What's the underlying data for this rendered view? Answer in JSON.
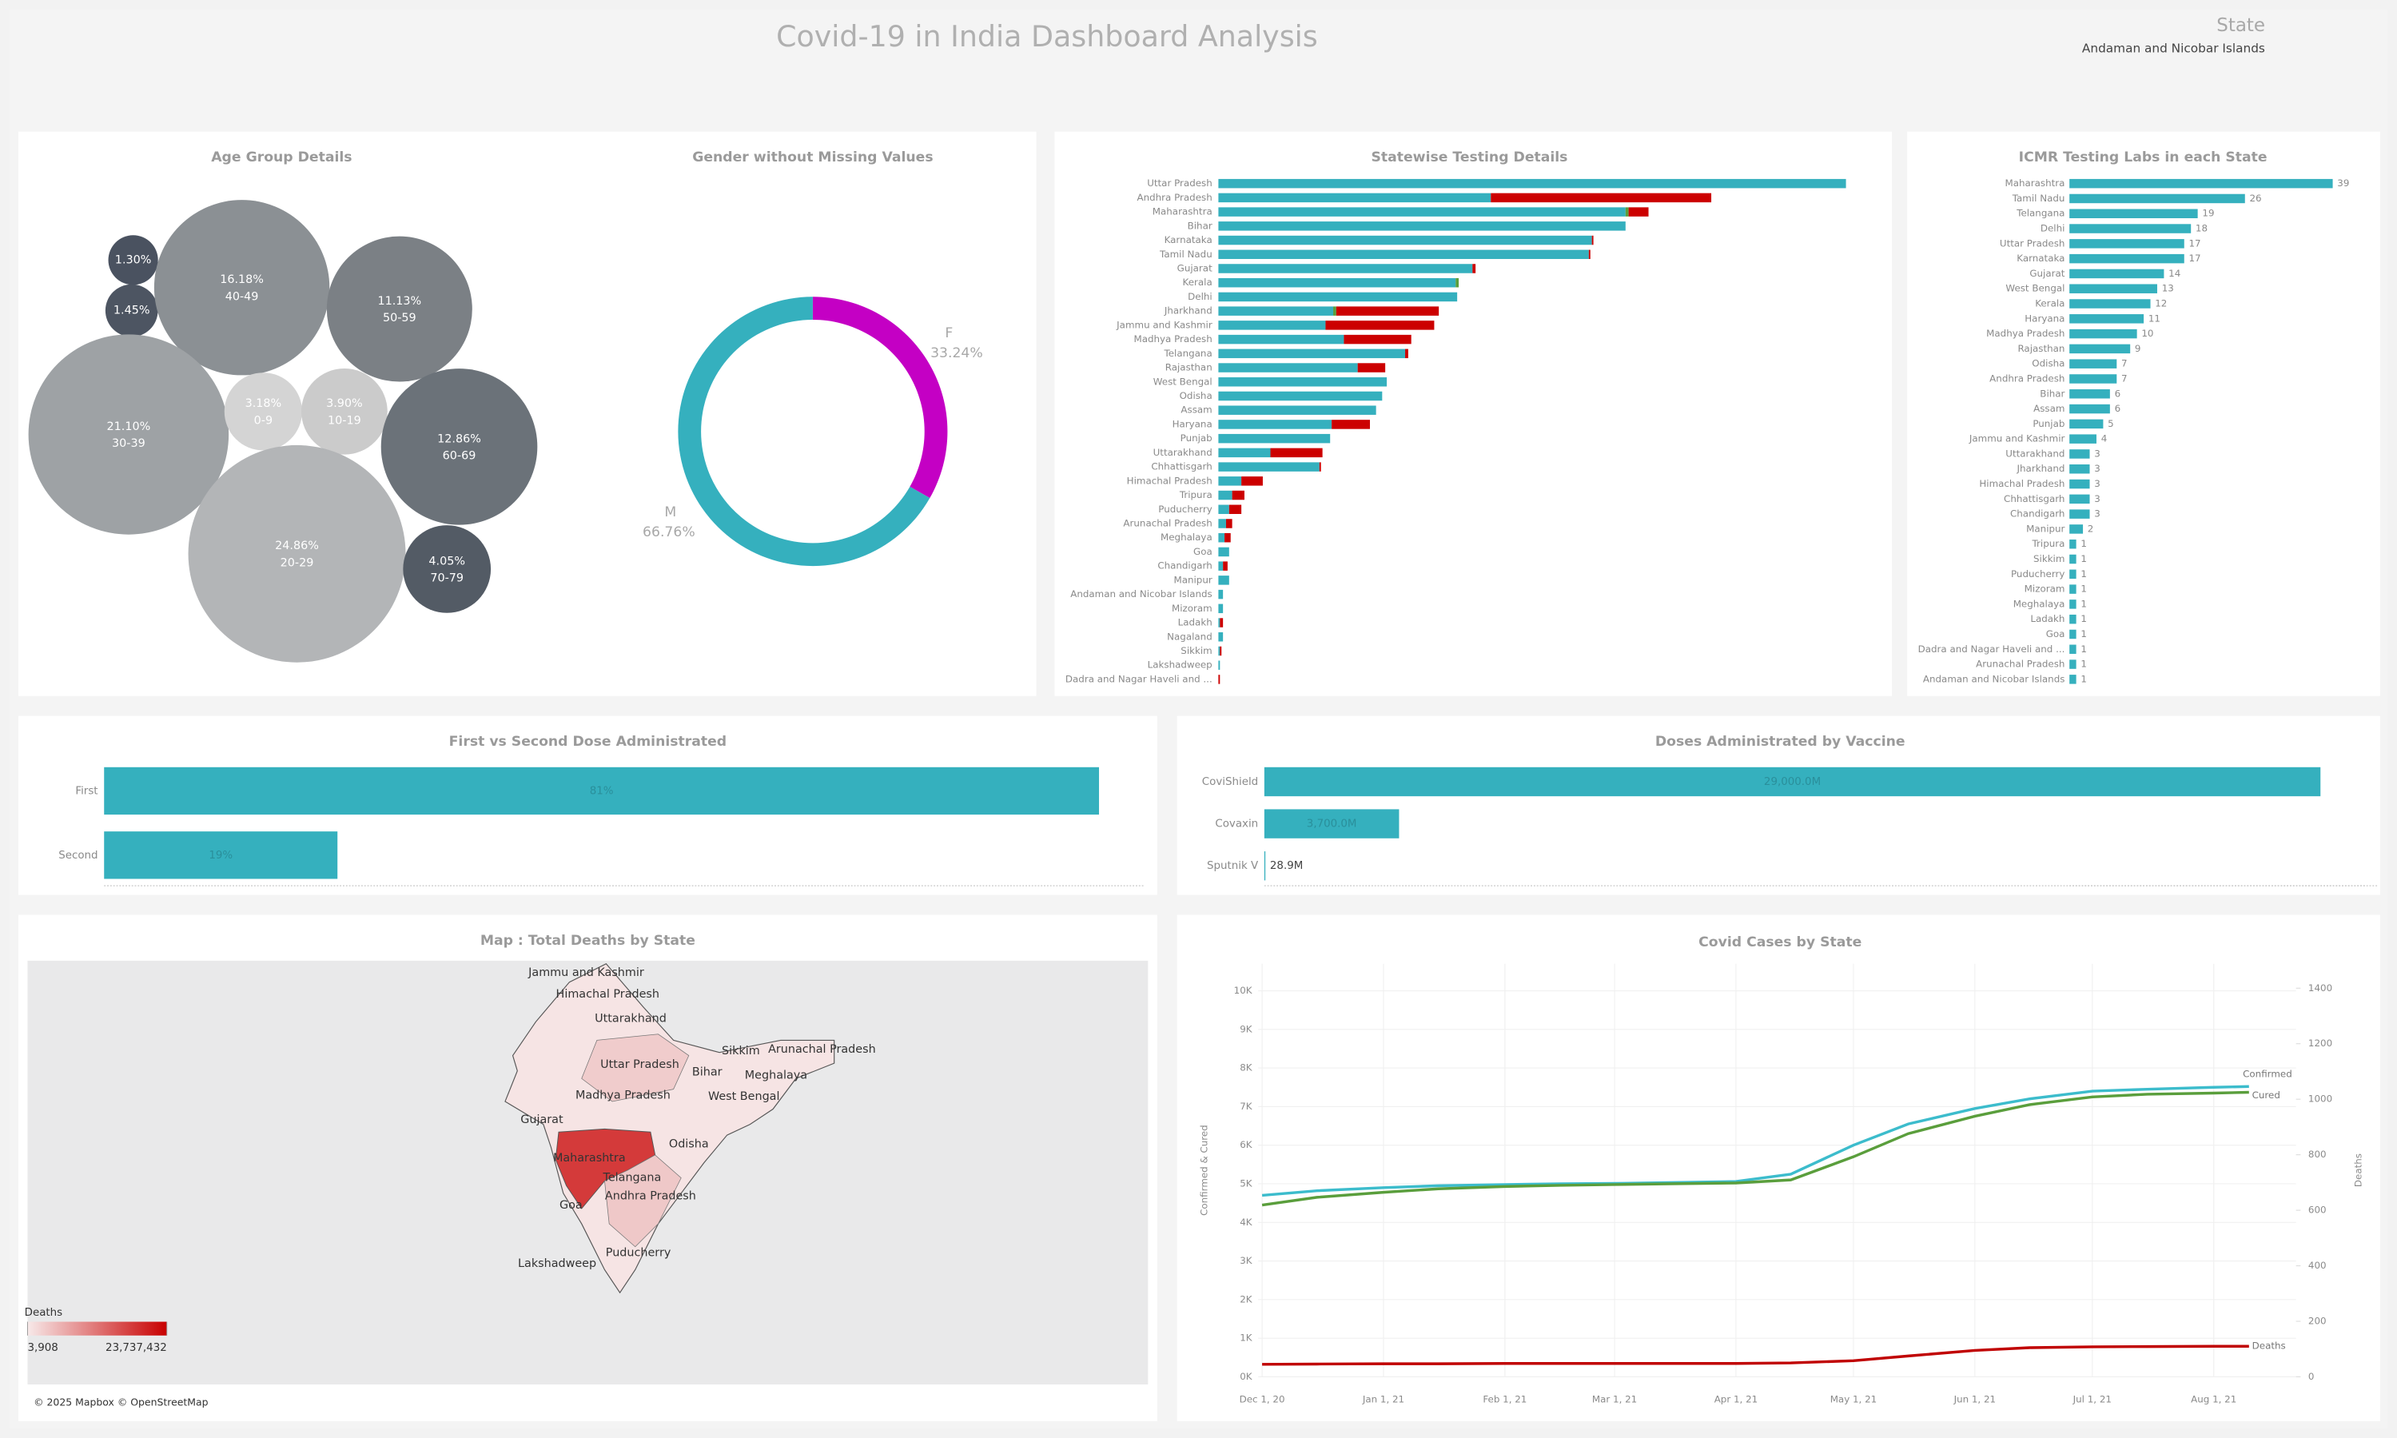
{
  "header": {
    "title": "Covid-19 in India Dashboard Analysis",
    "filter_label": "State",
    "filter_value": "Andaman and Nicobar Islands"
  },
  "chart_data": [
    {
      "type": "bubble",
      "title": "Age Group Details",
      "categories": [
        null,
        null,
        "40-49",
        "50-59",
        "30-39",
        "0-9",
        "10-19",
        "60-69",
        "20-29",
        "70-79"
      ],
      "values": [
        1.3,
        1.45,
        16.18,
        11.13,
        21.1,
        3.18,
        3.9,
        12.86,
        24.86,
        4.05
      ],
      "value_labels": [
        "1.30%",
        "1.45%",
        "16.18%",
        "11.13%",
        "21.10%",
        "3.18%",
        "3.90%",
        "12.86%",
        "24.86%",
        "4.05%"
      ],
      "colors": [
        "#4a5260",
        "#4d5562",
        "#8b9094",
        "#7b8085",
        "#9ea2a5",
        "#d4d4d4",
        "#cbcbcb",
        "#6b7279",
        "#b3b5b7",
        "#535b65"
      ]
    },
    {
      "type": "donut",
      "title": "Gender without Missing  Values",
      "categories": [
        "F",
        "M"
      ],
      "values": [
        33.24,
        66.76
      ],
      "value_labels": [
        "33.24%",
        "66.76%"
      ],
      "colors": [
        "#c400c4",
        "#35b0be"
      ]
    },
    {
      "type": "stacked_bar_h",
      "title": "Statewise Testing Details",
      "categories": [
        "Uttar Pradesh",
        "Andhra Pradesh",
        "Maharashtra",
        "Bihar",
        "Karnataka",
        "Tamil Nadu",
        "Gujarat",
        "Kerala",
        "Delhi",
        "Jharkhand",
        "Jammu and Kashmir",
        "Madhya Pradesh",
        "Telangana",
        "Rajasthan",
        "West Bengal",
        "Odisha",
        "Assam",
        "Haryana",
        "Punjab",
        "Uttarakhand",
        "Chhattisgarh",
        "Himachal Pradesh",
        "Tripura",
        "Puducherry",
        "Arunachal Pradesh",
        "Meghalaya",
        "Goa",
        "Chandigarh",
        "Manipur",
        "Andaman and Nicobar Islands",
        "Mizoram",
        "Ladakh",
        "Nagaland",
        "Sikkim",
        "Lakshadweep",
        "Dadra and Nagar Haveli and ..."
      ],
      "series": [
        {
          "color": "#35b0be",
          "values": [
            410,
            178,
            266,
            266,
            244,
            242,
            166,
            155,
            156,
            75,
            70,
            82,
            122,
            91,
            110,
            107,
            103,
            74,
            73,
            34,
            66,
            15,
            9,
            7,
            5,
            4,
            7,
            3,
            7,
            3,
            3,
            1,
            3,
            1,
            1,
            0
          ]
        },
        {
          "color": "#5a9e3c",
          "values": [
            0,
            0,
            2,
            0,
            0,
            0,
            0,
            2,
            0,
            2,
            0,
            0,
            0,
            0,
            0,
            0,
            0,
            0,
            0,
            0,
            0,
            0,
            0,
            0,
            0,
            0,
            0,
            0,
            0,
            0,
            0,
            0,
            0,
            0,
            0,
            0
          ]
        },
        {
          "color": "#cc0000",
          "values": [
            0,
            144,
            13,
            0,
            1,
            1,
            2,
            0,
            0,
            67,
            71,
            44,
            2,
            18,
            0,
            0,
            0,
            25,
            0,
            34,
            1,
            14,
            8,
            8,
            4,
            4,
            0,
            3,
            0,
            0,
            0,
            2,
            0,
            1,
            0,
            1
          ]
        }
      ],
      "xlim": [
        0,
        430
      ]
    },
    {
      "type": "bar_h",
      "title": "ICMR Testing Labs in each State",
      "categories": [
        "Maharashtra",
        "Tamil Nadu",
        "Telangana",
        "Delhi",
        "Uttar Pradesh",
        "Karnataka",
        "Gujarat",
        "West Bengal",
        "Kerala",
        "Haryana",
        "Madhya Pradesh",
        "Rajasthan",
        "Odisha",
        "Andhra Pradesh",
        "Bihar",
        "Assam",
        "Punjab",
        "Jammu and Kashmir",
        "Uttarakhand",
        "Jharkhand",
        "Himachal Pradesh",
        "Chhattisgarh",
        "Chandigarh",
        "Manipur",
        "Tripura",
        "Sikkim",
        "Puducherry",
        "Mizoram",
        "Meghalaya",
        "Ladakh",
        "Goa",
        "Dadra and Nagar Haveli and ...",
        "Arunachal Pradesh",
        "Andaman and Nicobar Islands"
      ],
      "values": [
        39,
        26,
        19,
        18,
        17,
        17,
        14,
        13,
        12,
        11,
        10,
        9,
        7,
        7,
        6,
        6,
        5,
        4,
        3,
        3,
        3,
        3,
        3,
        2,
        1,
        1,
        1,
        1,
        1,
        1,
        1,
        1,
        1,
        1
      ],
      "color": "#35b0be",
      "xlim": [
        0,
        39
      ]
    },
    {
      "type": "bar_h",
      "title": "First vs Second Dose Administrated",
      "categories": [
        "First",
        "Second"
      ],
      "values": [
        81,
        19
      ],
      "value_labels": [
        "81%",
        "19%"
      ],
      "color": "#35b0be",
      "xlim": [
        0,
        81
      ]
    },
    {
      "type": "bar_h",
      "title": "Doses Administrated by Vaccine",
      "categories": [
        "CoviShield",
        "Covaxin",
        "Sputnik V"
      ],
      "values": [
        29000000000,
        3700000000,
        28900000
      ],
      "value_labels": [
        "29,000.0M",
        "3,700.0M",
        "28.9M"
      ],
      "color": "#35b0be",
      "xlim": [
        0,
        29000000000
      ]
    },
    {
      "type": "map",
      "title": "Map : Total Deaths by State",
      "legend_title": "Deaths",
      "legend_min": {
        "value": 3908,
        "label": "3,908"
      },
      "legend_max": {
        "value": 23737432,
        "label": "23,737,432"
      },
      "attribution": "© 2025 Mapbox © OpenStreetMap",
      "labels": [
        "Jammu and Kashmir",
        "Himachal Pradesh",
        "Uttarakhand",
        "Sikkim",
        "Arunachal Pradesh",
        "Uttar Pradesh",
        "Bihar",
        "Meghalaya",
        "Madhya Pradesh",
        "West Bengal",
        "Gujarat",
        "Odisha",
        "Maharashtra",
        "Telangana",
        "Andhra Pradesh",
        "Goa",
        "Puducherry",
        "Lakshadweep"
      ]
    },
    {
      "type": "line",
      "title": "Covid Cases by  State",
      "y_label": "Confirmed & Cured",
      "y2_label": "Deaths",
      "x": [
        "2020-12-01",
        "2020-12-15",
        "2021-01-01",
        "2021-01-15",
        "2021-02-01",
        "2021-02-15",
        "2021-03-01",
        "2021-03-15",
        "2021-04-01",
        "2021-04-15",
        "2021-05-01",
        "2021-05-15",
        "2021-06-01",
        "2021-06-15",
        "2021-07-01",
        "2021-07-15",
        "2021-08-01",
        "2021-08-10"
      ],
      "series": [
        {
          "name": "Confirmed",
          "color": "#3cbccc",
          "values": [
            4700,
            4820,
            4900,
            4950,
            4980,
            5000,
            5010,
            5030,
            5060,
            5250,
            6000,
            6550,
            6950,
            7200,
            7400,
            7450,
            7500,
            7520
          ]
        },
        {
          "name": "Cured",
          "color": "#5a9e3c",
          "values": [
            4450,
            4650,
            4780,
            4870,
            4930,
            4960,
            4980,
            5000,
            5020,
            5100,
            5700,
            6300,
            6750,
            7050,
            7250,
            7320,
            7350,
            7370
          ]
        },
        {
          "name": "Deaths",
          "color": "#c00000",
          "axis": "y2",
          "values": [
            45,
            46,
            47,
            47,
            48,
            48,
            48,
            48,
            48,
            50,
            58,
            75,
            95,
            105,
            108,
            109,
            110,
            110
          ]
        }
      ],
      "xlim": [
        "2020-11-30",
        "2021-08-22"
      ],
      "xticks": [
        {
          "value": "2020-12-01",
          "label": "Dec 1, 20"
        },
        {
          "value": "2021-01-01",
          "label": "Jan 1, 21"
        },
        {
          "value": "2021-02-01",
          "label": "Feb 1, 21"
        },
        {
          "value": "2021-03-01",
          "label": "Mar 1, 21"
        },
        {
          "value": "2021-04-01",
          "label": "Apr 1, 21"
        },
        {
          "value": "2021-05-01",
          "label": "May 1, 21"
        },
        {
          "value": "2021-06-01",
          "label": "Jun 1, 21"
        },
        {
          "value": "2021-07-01",
          "label": "Jul 1, 21"
        },
        {
          "value": "2021-08-01",
          "label": "Aug 1, 21"
        }
      ],
      "ylim": [
        0,
        10700
      ],
      "yticks": [
        {
          "value": 0,
          "label": "0K"
        },
        {
          "value": 1000,
          "label": "1K"
        },
        {
          "value": 2000,
          "label": "2K"
        },
        {
          "value": 3000,
          "label": "3K"
        },
        {
          "value": 4000,
          "label": "4K"
        },
        {
          "value": 5000,
          "label": "5K"
        },
        {
          "value": 6000,
          "label": "6K"
        },
        {
          "value": 7000,
          "label": "7K"
        },
        {
          "value": 8000,
          "label": "8K"
        },
        {
          "value": 9000,
          "label": "9K"
        },
        {
          "value": 10000,
          "label": "10K"
        }
      ],
      "y2lim": [
        0,
        1488
      ],
      "y2ticks": [
        0,
        200,
        400,
        600,
        800,
        1000,
        1200,
        1400
      ],
      "grid": true
    }
  ]
}
